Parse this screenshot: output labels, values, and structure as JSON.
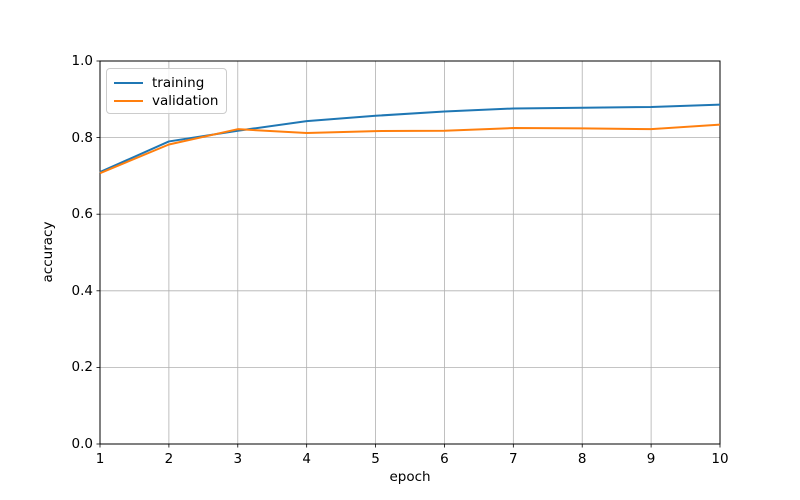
{
  "chart_data": {
    "type": "line",
    "title": "",
    "xlabel": "epoch",
    "ylabel": "accuracy",
    "x": [
      1,
      2,
      3,
      4,
      5,
      6,
      7,
      8,
      9,
      10
    ],
    "series": [
      {
        "name": "training",
        "color": "#1f77b4",
        "values": [
          0.71,
          0.79,
          0.818,
          0.843,
          0.857,
          0.868,
          0.876,
          0.878,
          0.88,
          0.886
        ]
      },
      {
        "name": "validation",
        "color": "#ff7f0e",
        "values": [
          0.707,
          0.782,
          0.822,
          0.812,
          0.817,
          0.818,
          0.825,
          0.824,
          0.822,
          0.834
        ]
      }
    ],
    "xlim": [
      1,
      10
    ],
    "ylim": [
      0.0,
      1.0
    ],
    "xticks": [
      1,
      2,
      3,
      4,
      5,
      6,
      7,
      8,
      9,
      10
    ],
    "xtick_labels": [
      "1",
      "2",
      "3",
      "4",
      "5",
      "6",
      "7",
      "8",
      "9",
      "10"
    ],
    "yticks": [
      0.0,
      0.2,
      0.4,
      0.6,
      0.8,
      1.0
    ],
    "ytick_labels": [
      "0.0",
      "0.2",
      "0.4",
      "0.6",
      "0.8",
      "1.0"
    ],
    "grid": true,
    "grid_color": "#b0b0b0",
    "spine_color": "#000000",
    "background": "#ffffff",
    "legend": {
      "position": "upper-left",
      "entries": [
        "training",
        "validation"
      ]
    }
  }
}
